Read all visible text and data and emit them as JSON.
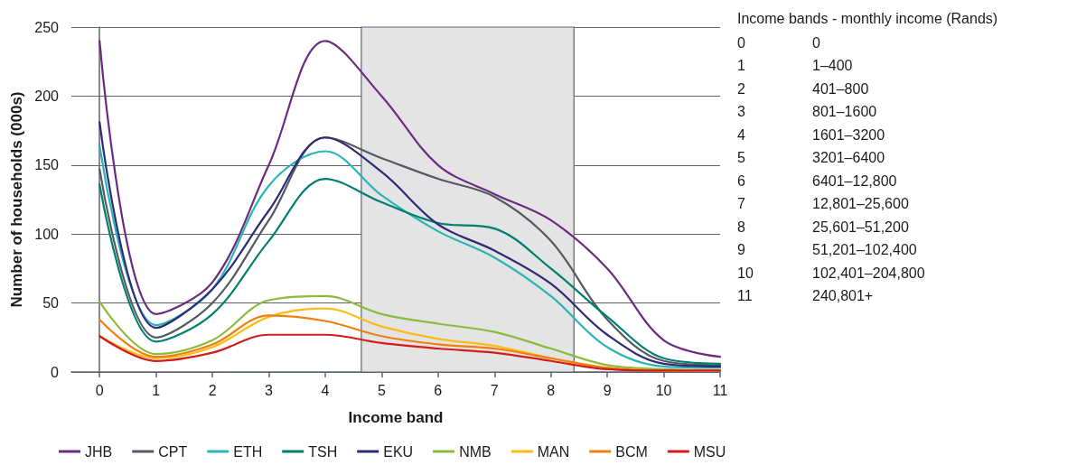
{
  "chart_data": {
    "type": "line",
    "xlabel": "Income band",
    "ylabel": "Number of households (000s)",
    "x": [
      0,
      1,
      2,
      3,
      4,
      5,
      6,
      7,
      8,
      9,
      10,
      11
    ],
    "xlim": [
      -0.5,
      11
    ],
    "xticks": [
      0,
      1,
      2,
      3,
      4,
      5,
      6,
      7,
      8,
      9,
      10,
      11
    ],
    "ylim": [
      0,
      250
    ],
    "yticks": [
      0,
      50,
      100,
      150,
      200,
      250
    ],
    "grid": "y",
    "legend": "bottom",
    "line_style": "solid",
    "marker": "none",
    "bands": [
      {
        "axis": "x",
        "from": 4.64,
        "to": 8.41,
        "color": "#e4e4e4"
      }
    ],
    "series": [
      {
        "name": "JHB",
        "color": "#6b2c7f",
        "values": [
          240,
          42,
          65,
          150,
          240,
          200,
          150,
          129,
          110,
          75,
          23,
          11
        ]
      },
      {
        "name": "CPT",
        "color": "#555a62",
        "values": [
          147,
          25,
          50,
          110,
          170,
          155,
          140,
          127,
          95,
          38,
          8,
          5
        ]
      },
      {
        "name": "ETH",
        "color": "#2ab5b5",
        "values": [
          164,
          34,
          60,
          135,
          160,
          128,
          102,
          83,
          55,
          18,
          4,
          3
        ]
      },
      {
        "name": "TSH",
        "color": "#007f6e",
        "values": [
          136,
          22,
          42,
          95,
          140,
          123,
          108,
          104,
          75,
          40,
          10,
          6
        ]
      },
      {
        "name": "EKU",
        "color": "#2e2a78",
        "values": [
          181,
          32,
          60,
          117,
          170,
          145,
          107,
          88,
          64,
          27,
          6,
          4
        ]
      },
      {
        "name": "NMB",
        "color": "#8bbb3c",
        "values": [
          51,
          13,
          23,
          52,
          55,
          42,
          35,
          29,
          17,
          5,
          2,
          1
        ]
      },
      {
        "name": "MAN",
        "color": "#fdbb13",
        "values": [
          26,
          10,
          18,
          40,
          46,
          33,
          24,
          19,
          10,
          3,
          1,
          1
        ]
      },
      {
        "name": "BCM",
        "color": "#f07f0d",
        "values": [
          38,
          11,
          20,
          41,
          37,
          26,
          20,
          17,
          10,
          3,
          1,
          1
        ]
      },
      {
        "name": "MSU",
        "color": "#d21c1c",
        "values": [
          26,
          8,
          14,
          27,
          27,
          21,
          17,
          14,
          8,
          2,
          1,
          1
        ]
      }
    ],
    "annotations": [
      "Income bands - monthly income (Rands)",
      "0",
      "0",
      "1",
      "1–400",
      "2",
      "401–800",
      "3",
      "801–1600",
      "4",
      "1601–3200",
      "5",
      "3201–6400",
      "6",
      "6401–12,800",
      "7",
      "12,801–25,600",
      "8",
      "25,601–51,200",
      "9",
      "51,201–102,400",
      "10",
      "102,401–204,800",
      "11",
      "240,801+"
    ]
  }
}
